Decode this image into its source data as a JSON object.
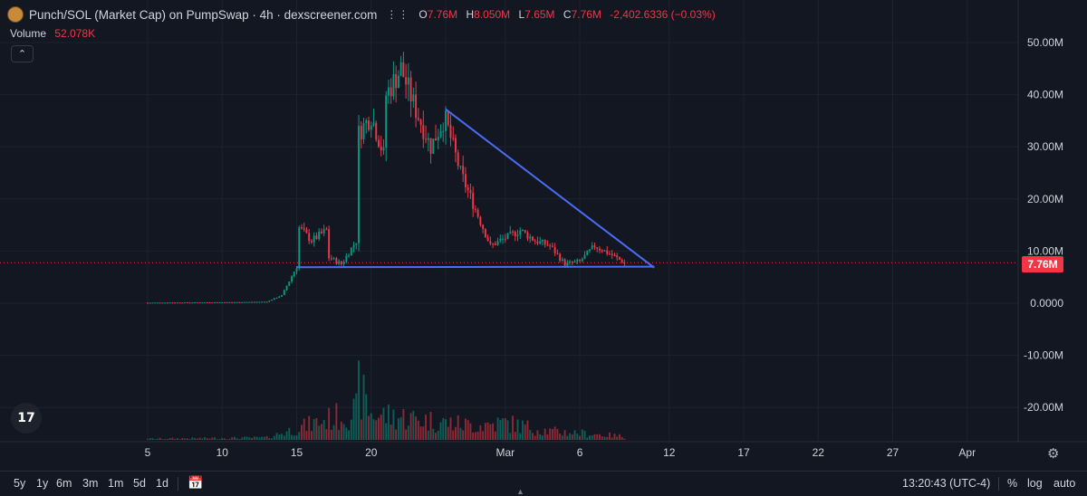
{
  "header": {
    "title": "Punch/SOL (Market Cap) on PumpSwap · 4h · dexscreener.com",
    "more_icon": "more-dots-icon",
    "ohlc": [
      {
        "key": "O",
        "value": "7.76M"
      },
      {
        "key": "H",
        "value": "8.050M"
      },
      {
        "key": "L",
        "value": "7.65M"
      },
      {
        "key": "C",
        "value": "7.76M"
      }
    ],
    "change": "-2,402.6336 (−0.03%)"
  },
  "volume": {
    "label": "Volume",
    "value": "52.078K"
  },
  "collapse_symbol": "⌃",
  "current_price": "7.76M",
  "tv_logo_text": "17",
  "colors": {
    "up": "#089981",
    "down": "#f23645",
    "trendline": "#4a6cf7",
    "background": "#131722",
    "grid": "#1e222d"
  },
  "bottom_bar": {
    "timeframes": [
      "5y",
      "1y",
      "6m",
      "3m",
      "1m",
      "5d",
      "1d"
    ],
    "clock": "13:20:43 (UTC-4)",
    "percent": "%",
    "log": "log",
    "auto": "auto"
  },
  "chart_data": {
    "type": "candlestick",
    "title": "Punch/SOL (Market Cap) on PumpSwap · 4h",
    "y_tick_labels": [
      "50.00M",
      "40.00M",
      "30.00M",
      "20.00M",
      "10.00M",
      "0.0000",
      "-10.00M",
      "-20.00M"
    ],
    "y_ticks": [
      50,
      40,
      30,
      20,
      10,
      0,
      -10,
      -20
    ],
    "y_unit": "M",
    "ylim": [
      -25,
      53
    ],
    "x_tick_labels": [
      "5",
      "10",
      "15",
      "20",
      "",
      "Mar",
      "6",
      "12",
      "17",
      "22",
      "27",
      "Apr"
    ],
    "x_ticks": [
      "Feb 5",
      "Feb 10",
      "Feb 15",
      "Feb 20",
      "Feb 25",
      "Mar 1",
      "Mar 6",
      "Mar 12",
      "Mar 17",
      "Mar 22",
      "Mar 27",
      "Apr 1"
    ],
    "current_price": 7.76,
    "trendlines": [
      {
        "name": "descending resistance",
        "from": [
          "Feb 25",
          37.2
        ],
        "to": [
          "Mar 11",
          6.8
        ]
      },
      {
        "name": "support",
        "from": [
          "Feb 15",
          6.9
        ],
        "to": [
          "Mar 11",
          7.0
        ]
      }
    ],
    "price_path": [
      [
        "Feb 5",
        0.1
      ],
      [
        "Feb 11",
        0.2
      ],
      [
        "Feb 13",
        0.3
      ],
      [
        "Feb 14",
        1.5
      ],
      [
        "Feb 15",
        7.0
      ],
      [
        "Feb 15",
        15.0
      ],
      [
        "Feb 16",
        12.0
      ],
      [
        "Feb 17",
        14.0
      ],
      [
        "Feb 17",
        9.0
      ],
      [
        "Feb 18",
        7.5
      ],
      [
        "Feb 19",
        12.0
      ],
      [
        "Feb 19",
        32.0
      ],
      [
        "Feb 20",
        36.0
      ],
      [
        "Feb 21",
        27.0
      ],
      [
        "Feb 21",
        40.0
      ],
      [
        "Feb 22",
        45.0
      ],
      [
        "Feb 23",
        37.0
      ],
      [
        "Feb 24",
        30.0
      ],
      [
        "Feb 25",
        36.0
      ],
      [
        "Feb 25",
        35.0
      ],
      [
        "Feb 26",
        25.0
      ],
      [
        "Feb 27",
        18.0
      ],
      [
        "Feb 28",
        11.0
      ],
      [
        "Mar 1",
        12.5
      ],
      [
        "Mar 2",
        14.0
      ],
      [
        "Mar 3",
        12.0
      ],
      [
        "Mar 4",
        11.0
      ],
      [
        "Mar 5",
        7.5
      ],
      [
        "Mar 6",
        8.0
      ],
      [
        "Mar 7",
        11.0
      ],
      [
        "Mar 8",
        9.5
      ],
      [
        "Mar 9",
        7.76
      ]
    ],
    "volume_path": [
      [
        "Feb 5",
        0.02
      ],
      [
        "Feb 13",
        0.04
      ],
      [
        "Feb 15",
        0.2
      ],
      [
        "Feb 19",
        0.5
      ],
      [
        "Feb 19",
        1.0
      ],
      [
        "Feb 20",
        0.45
      ],
      [
        "Feb 22",
        0.4
      ],
      [
        "Feb 25",
        0.3
      ],
      [
        "Feb 27",
        0.25
      ],
      [
        "Mar 1",
        0.3
      ],
      [
        "Mar 4",
        0.15
      ],
      [
        "Mar 6",
        0.12
      ],
      [
        "Mar 9",
        0.06
      ]
    ]
  }
}
